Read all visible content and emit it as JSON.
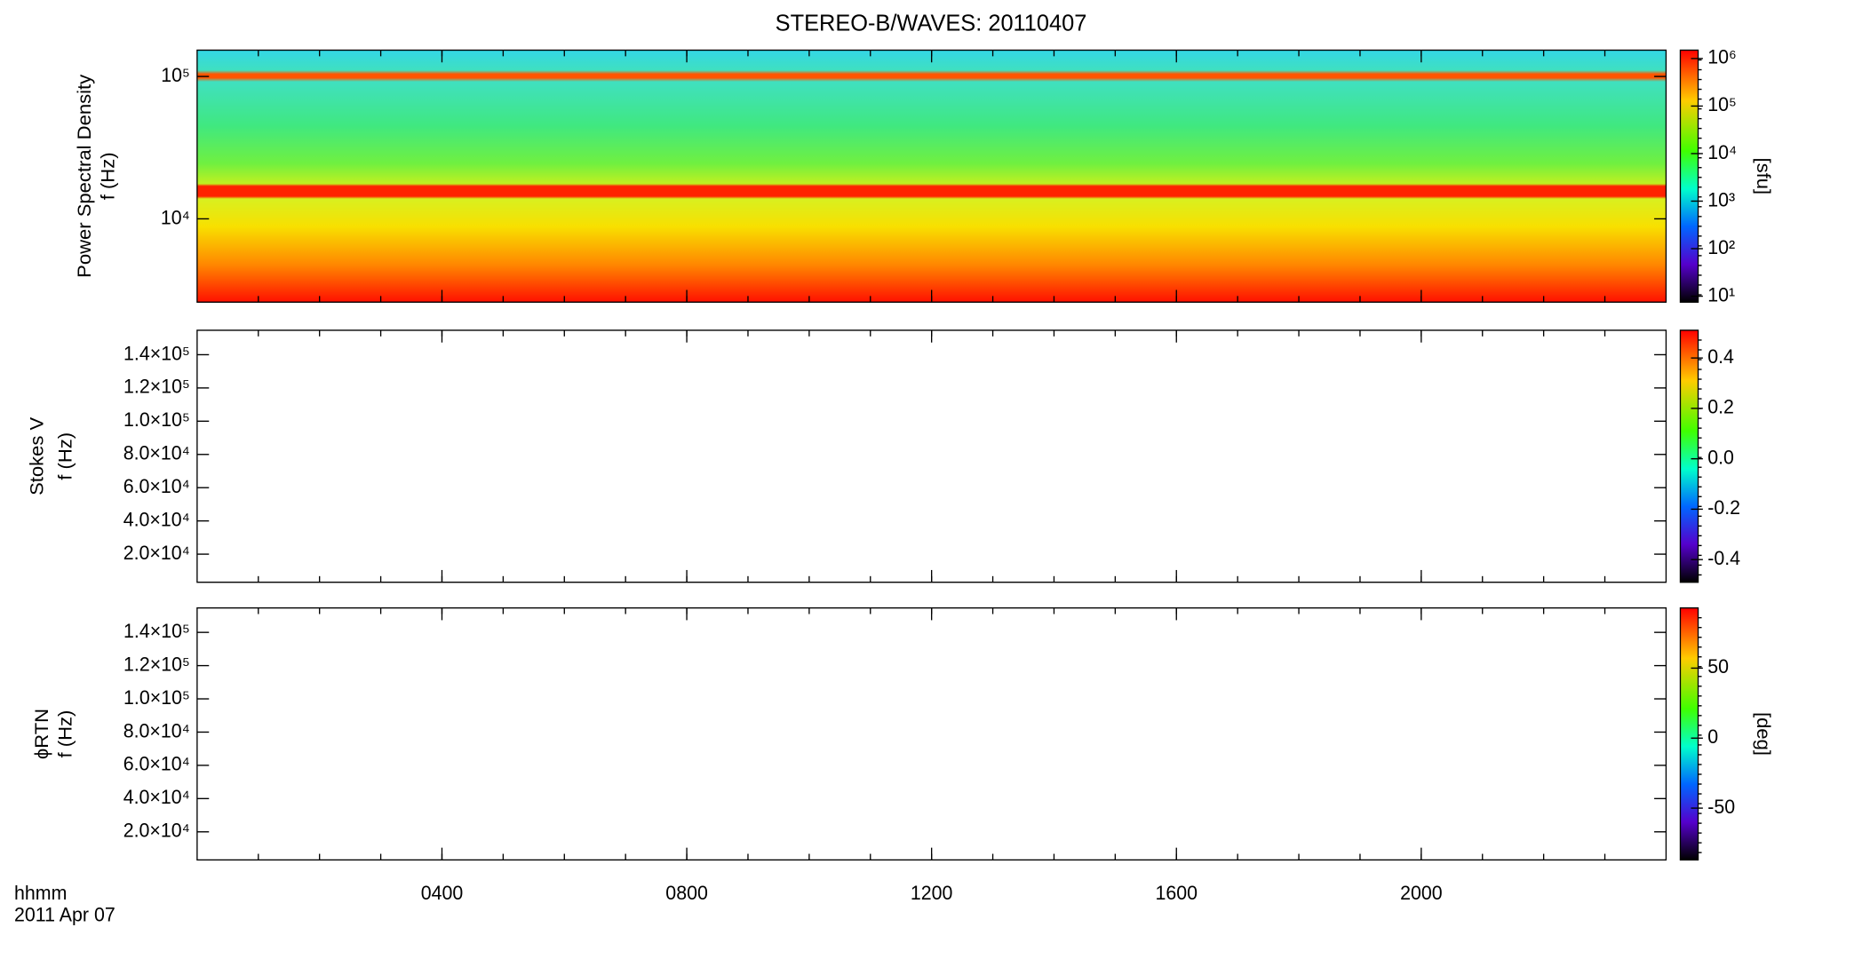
{
  "title": "STEREO-B/WAVES: 20110407",
  "x_axis": {
    "xlim": [
      0,
      24
    ],
    "xticks": [
      {
        "value": 4,
        "label": "0400"
      },
      {
        "value": 8,
        "label": "0800"
      },
      {
        "value": 12,
        "label": "1200"
      },
      {
        "value": 16,
        "label": "1600"
      },
      {
        "value": 20,
        "label": "2000"
      }
    ],
    "labels": [
      "hhmm",
      "2011 Apr 07"
    ]
  },
  "chart_data": [
    {
      "type": "heatmap",
      "ylabel": [
        "Power Spectral Density",
        "f (Hz)"
      ],
      "ylog": true,
      "ylim": [
        2600,
        153000
      ],
      "yticks": [
        {
          "value": 10000,
          "label": "10⁴"
        },
        {
          "value": 100000,
          "label": "10⁵"
        }
      ],
      "clog": true,
      "clim": [
        7.5,
        1500000
      ],
      "cticks": [
        {
          "value": 10,
          "label": "10¹"
        },
        {
          "value": 100,
          "label": "10²"
        },
        {
          "value": 1000,
          "label": "10³"
        },
        {
          "value": 10000,
          "label": "10⁴"
        },
        {
          "value": 100000,
          "label": "10⁵"
        },
        {
          "value": 1000000,
          "label": "10⁶"
        }
      ],
      "colorbar_label": "[sfu]"
    },
    {
      "type": "heatmap",
      "ylabel": [
        "Stokes V",
        "f (Hz)"
      ],
      "ylog": false,
      "ylim": [
        3100,
        154700
      ],
      "yticks": [
        {
          "value": 20000,
          "label": "2.0×10⁴"
        },
        {
          "value": 40000,
          "label": "4.0×10⁴"
        },
        {
          "value": 60000,
          "label": "6.0×10⁴"
        },
        {
          "value": 80000,
          "label": "8.0×10⁴"
        },
        {
          "value": 100000,
          "label": "1.0×10⁵"
        },
        {
          "value": 120000,
          "label": "1.2×10⁵"
        },
        {
          "value": 140000,
          "label": "1.4×10⁵"
        }
      ],
      "clog": false,
      "clim": [
        -0.49,
        0.51
      ],
      "cticks": [
        -0.4,
        -0.2,
        {
          "value": 0,
          "label": "0.0"
        },
        0.2,
        0.4
      ]
    },
    {
      "type": "heatmap",
      "ylabel": [
        "ϕRTN",
        "f (Hz)"
      ],
      "ylog": false,
      "ylim": [
        3100,
        154700
      ],
      "yticks": [
        {
          "value": 20000,
          "label": "2.0×10⁴"
        },
        {
          "value": 40000,
          "label": "4.0×10⁴"
        },
        {
          "value": 60000,
          "label": "6.0×10⁴"
        },
        {
          "value": 80000,
          "label": "8.0×10⁴"
        },
        {
          "value": 100000,
          "label": "1.0×10⁵"
        },
        {
          "value": 120000,
          "label": "1.2×10⁵"
        },
        {
          "value": 140000,
          "label": "1.4×10⁵"
        }
      ],
      "clog": false,
      "clim": [
        -87,
        93
      ],
      "cticks": [
        -50,
        0,
        50
      ],
      "colorbar_label": "[deg]"
    }
  ]
}
